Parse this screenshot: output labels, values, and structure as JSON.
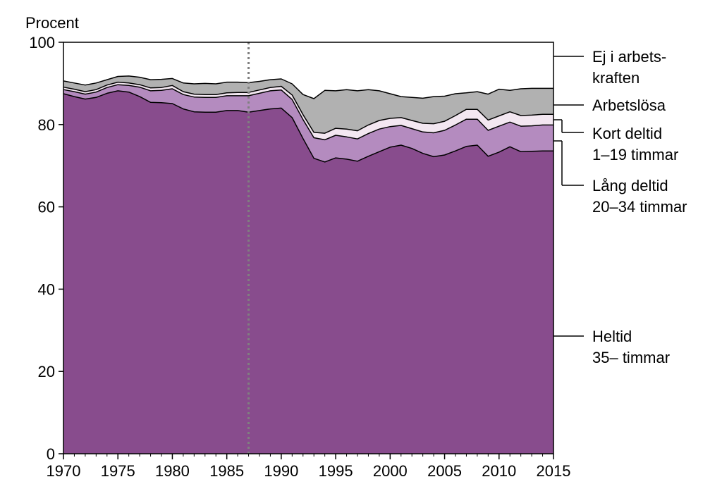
{
  "chart_data": {
    "type": "area",
    "stacked": true,
    "title": "",
    "ylabel": "Procent",
    "xlabel": "",
    "xlim": [
      1970,
      2015
    ],
    "ylim": [
      0,
      100
    ],
    "x_ticks": [
      1970,
      1975,
      1980,
      1985,
      1990,
      1995,
      2000,
      2005,
      2010,
      2015
    ],
    "y_ticks": [
      0,
      20,
      40,
      60,
      80,
      100
    ],
    "grid": false,
    "marker_line": {
      "x": 1987,
      "style": "dotted"
    },
    "x": [
      1970,
      1971,
      1972,
      1973,
      1974,
      1975,
      1976,
      1977,
      1978,
      1979,
      1980,
      1981,
      1982,
      1983,
      1984,
      1985,
      1986,
      1987,
      1988,
      1989,
      1990,
      1991,
      1992,
      1993,
      1994,
      1995,
      1996,
      1997,
      1998,
      1999,
      2000,
      2001,
      2002,
      2003,
      2004,
      2005,
      2006,
      2007,
      2008,
      2009,
      2010,
      2011,
      2012,
      2013,
      2014,
      2015
    ],
    "series": [
      {
        "name_lines": [
          "Heltid",
          "35– timmar"
        ],
        "color": "#884c8d",
        "values": [
          87.5,
          86.8,
          86.2,
          86.6,
          87.6,
          88.2,
          87.9,
          86.8,
          85.4,
          85.3,
          85.1,
          83.8,
          83.1,
          83.0,
          83.0,
          83.4,
          83.4,
          83.0,
          83.4,
          83.8,
          84.0,
          81.7,
          76.6,
          71.8,
          70.9,
          71.9,
          71.6,
          71.1,
          72.3,
          73.4,
          74.5,
          75.0,
          74.2,
          73.0,
          72.2,
          72.6,
          73.6,
          74.7,
          75.0,
          72.3,
          73.3,
          74.6,
          73.4,
          73.5,
          73.6,
          73.6
        ]
      },
      {
        "name_lines": [
          "Lång deltid",
          "20–34 timmar"
        ],
        "color": "#b48bbf",
        "values": [
          1.0,
          1.2,
          1.2,
          1.3,
          1.4,
          1.5,
          1.6,
          2.3,
          2.8,
          3.0,
          3.6,
          3.5,
          3.6,
          3.6,
          3.6,
          3.6,
          3.6,
          4.0,
          4.2,
          4.4,
          4.4,
          4.4,
          4.6,
          5.0,
          5.4,
          5.5,
          5.4,
          5.4,
          5.5,
          5.5,
          5.0,
          4.8,
          4.8,
          5.2,
          5.8,
          6.0,
          6.3,
          6.6,
          6.3,
          6.3,
          6.3,
          6.0,
          6.2,
          6.2,
          6.3,
          6.3
        ]
      },
      {
        "name_lines": [
          "Kort deltid",
          "1–19 timmar"
        ],
        "color": "#f3e7f1",
        "values": [
          0.6,
          0.6,
          0.6,
          0.6,
          0.6,
          0.6,
          0.6,
          0.6,
          0.7,
          0.7,
          0.8,
          0.7,
          0.7,
          0.7,
          0.7,
          0.7,
          0.8,
          0.8,
          0.8,
          0.8,
          0.9,
          1.1,
          1.2,
          1.3,
          1.6,
          1.7,
          1.9,
          2.0,
          2.1,
          2.1,
          2.0,
          1.9,
          2.0,
          2.1,
          2.2,
          2.2,
          2.3,
          2.4,
          2.4,
          2.5,
          2.5,
          2.5,
          2.6,
          2.6,
          2.6,
          2.6
        ]
      },
      {
        "name_lines": [
          "Arbetslösa"
        ],
        "color": "#b1b1b1",
        "values": [
          1.5,
          1.5,
          1.6,
          1.6,
          1.3,
          1.4,
          1.7,
          1.8,
          2.0,
          2.0,
          1.7,
          2.1,
          2.5,
          2.7,
          2.6,
          2.6,
          2.5,
          2.4,
          2.1,
          1.9,
          1.8,
          2.7,
          4.9,
          8.2,
          10.4,
          9.1,
          9.6,
          9.7,
          8.6,
          7.2,
          6.0,
          5.1,
          5.6,
          6.1,
          6.6,
          6.1,
          5.3,
          4.0,
          4.3,
          6.3,
          6.5,
          5.2,
          6.5,
          6.5,
          6.3,
          6.3
        ]
      },
      {
        "name_lines": [
          "Ej i arbets-",
          "kraften"
        ],
        "color": "#ffffff",
        "values": [
          9.4,
          9.9,
          10.4,
          9.9,
          9.1,
          8.3,
          8.2,
          8.5,
          9.1,
          9.0,
          8.8,
          9.9,
          10.1,
          10.0,
          10.1,
          9.7,
          9.7,
          9.8,
          9.5,
          9.1,
          8.9,
          10.1,
          12.7,
          13.7,
          11.7,
          11.8,
          11.5,
          11.8,
          11.5,
          11.8,
          12.5,
          13.2,
          13.4,
          13.6,
          13.2,
          13.1,
          12.5,
          12.3,
          12.0,
          12.6,
          11.4,
          11.7,
          11.3,
          11.2,
          11.2,
          11.2
        ]
      }
    ]
  }
}
